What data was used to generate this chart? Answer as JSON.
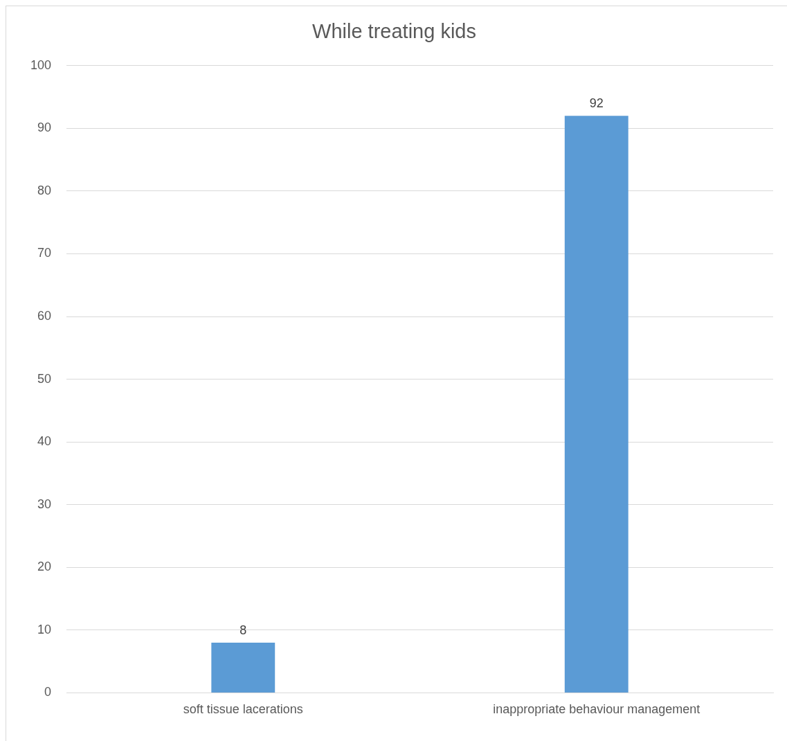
{
  "chart_data": {
    "type": "bar",
    "title": "While treating kids",
    "categories": [
      "soft tissue lacerations",
      "inappropriate behaviour management"
    ],
    "values": [
      8,
      92
    ],
    "color": "#5b9bd5",
    "ylim": [
      0,
      100
    ],
    "yticks": [
      0,
      10,
      20,
      30,
      40,
      50,
      60,
      70,
      80,
      90,
      100
    ],
    "grid": "y",
    "data_labels": true
  }
}
